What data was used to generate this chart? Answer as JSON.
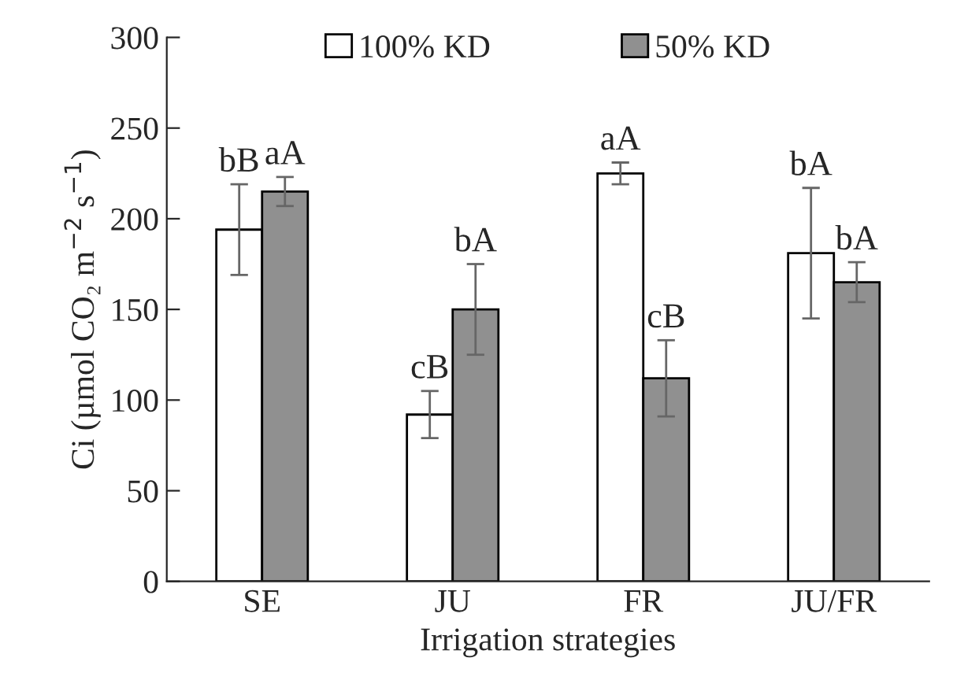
{
  "chart_data": {
    "type": "bar",
    "xlabel": "Irrigation strategies",
    "ylabel": "Ci (µmol CO₂ m$^{−2}$ s$^{−1}$)",
    "categories": [
      "SE",
      "JU",
      "FR",
      "JU/FR"
    ],
    "series": [
      {
        "name": "100% KD",
        "color": "#ffffff",
        "values": [
          194,
          92,
          225,
          181
        ],
        "errors": [
          25,
          13,
          6,
          36
        ],
        "value_labels": [
          "bB",
          "cB",
          "aA",
          "bA"
        ]
      },
      {
        "name": "50% KD",
        "color": "#909090",
        "values": [
          215,
          150,
          112,
          165
        ],
        "errors": [
          8,
          25,
          21,
          11
        ],
        "value_labels": [
          "aA",
          "bA",
          "cB",
          "bA"
        ]
      }
    ],
    "ylim": [
      0,
      300
    ],
    "yticks": [
      0,
      50,
      100,
      150,
      200,
      250,
      300
    ],
    "grid": false,
    "legend": "top"
  }
}
